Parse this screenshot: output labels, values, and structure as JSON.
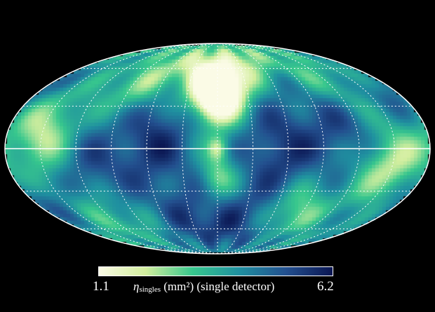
{
  "chart_data": {
    "type": "heatmap",
    "projection": "mollweide",
    "graticule": {
      "meridian_step_deg": 30,
      "parallel_step_deg": 30,
      "style": "dotted white",
      "equator": "solid white"
    },
    "colorbar": {
      "orientation": "horizontal",
      "placement": "bottom",
      "min": 1.1,
      "max": 6.2,
      "min_label": "1.1",
      "max_label": "6.2",
      "label_symbol": "η",
      "label_subscript": "singles",
      "label_rest": " (mm²) (single detector)",
      "colors": [
        "#fbfbe6",
        "#d2ee9e",
        "#37c78d",
        "#1f90a0",
        "#23508f",
        "#0b1652"
      ]
    }
  }
}
